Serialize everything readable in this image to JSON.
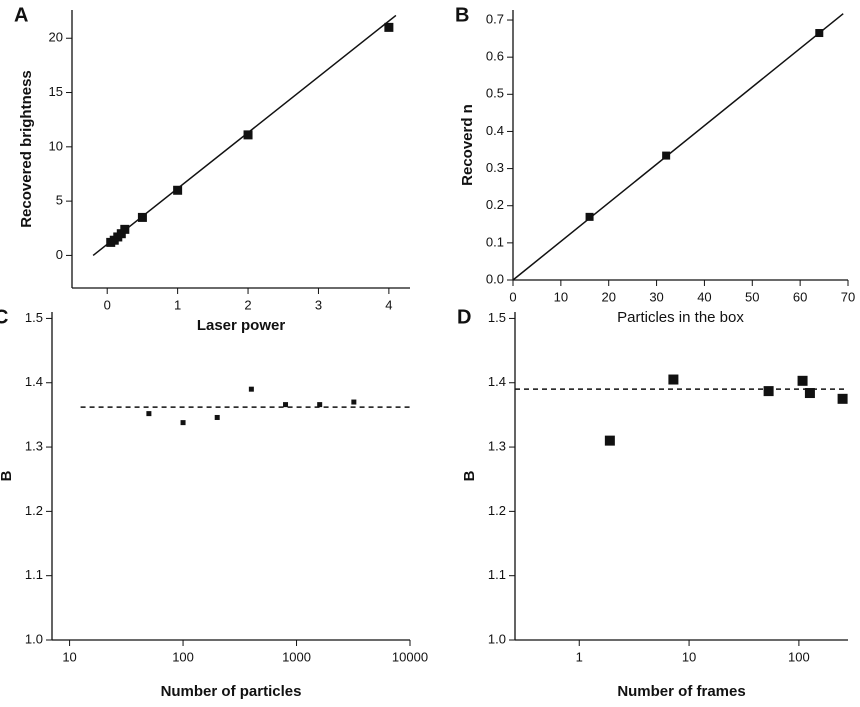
{
  "chart_data": [
    {
      "type": "scatter",
      "label": "A",
      "x_label": "Laser power",
      "y_label": "Recovered brightness",
      "xlim": [
        -0.5,
        4.3
      ],
      "ylim": [
        -3,
        22.6
      ],
      "xticks": [
        0,
        1,
        2,
        3,
        4
      ],
      "yticks": [
        0,
        5,
        10,
        15,
        20
      ],
      "marker_size": 9,
      "series": [
        {
          "style": "markers",
          "color": "#111111",
          "x": [
            0.05,
            0.1,
            0.15,
            0.2,
            0.25,
            0.5,
            1,
            2,
            4
          ],
          "values": [
            1.2,
            1.4,
            1.7,
            2.0,
            2.4,
            3.5,
            6.0,
            11.1,
            21.0
          ]
        },
        {
          "style": "line",
          "color": "#111111",
          "x": [
            -0.2,
            4.1
          ],
          "values": [
            0,
            22.1
          ]
        }
      ]
    },
    {
      "type": "scatter",
      "label": "B",
      "x_label": "Particles in the box",
      "y_label": "Recoverd n",
      "xlim": [
        0,
        70
      ],
      "ylim": [
        0,
        0.727
      ],
      "xticks": [
        0,
        10,
        20,
        30,
        40,
        50,
        60,
        70
      ],
      "yticks": [
        {
          "value": 0,
          "label": "0.0"
        },
        0.1,
        0.2,
        0.3,
        0.4,
        0.5,
        0.6,
        0.7
      ],
      "marker_size": 8,
      "series": [
        {
          "style": "markers",
          "color": "#111111",
          "x": [
            16,
            32,
            64
          ],
          "values": [
            0.17,
            0.335,
            0.665
          ]
        },
        {
          "style": "line",
          "color": "#111111",
          "x": [
            0,
            69
          ],
          "values": [
            0,
            0.717
          ]
        }
      ]
    },
    {
      "type": "scatter",
      "label": "C",
      "x_label": "Number of particles",
      "y_label": "B",
      "xscale": "log",
      "xlim": [
        7,
        10000
      ],
      "ylim": [
        1.0,
        1.51
      ],
      "xticks": [
        10,
        100,
        1000,
        10000
      ],
      "yticks": [
        {
          "value": 1.0,
          "label": "1.0"
        },
        1.1,
        1.2,
        1.3,
        1.4,
        1.5
      ],
      "marker_size": 5,
      "series": [
        {
          "style": "markers",
          "color": "#111111",
          "x": [
            50,
            100,
            200,
            400,
            800,
            1600,
            3200
          ],
          "values": [
            1.352,
            1.338,
            1.346,
            1.39,
            1.366,
            1.366,
            1.37
          ]
        },
        {
          "style": "dashed",
          "color": "#111111",
          "x": [
            12.5,
            10000
          ],
          "values": [
            1.362,
            1.362
          ]
        }
      ]
    },
    {
      "type": "scatter",
      "label": "D",
      "x_label": "Number of frames",
      "y_label": "B",
      "xscale": "log",
      "xlim": [
        0.26,
        280
      ],
      "ylim": [
        1.0,
        1.51
      ],
      "xticks": [
        1,
        10,
        100
      ],
      "yticks": [
        {
          "value": 1.0,
          "label": "1.0"
        },
        1.1,
        1.2,
        1.3,
        1.4,
        1.5
      ],
      "marker_size": 10,
      "series": [
        {
          "style": "markers",
          "color": "#111111",
          "x": [
            1.9,
            7.2,
            53,
            108,
            126,
            250
          ],
          "values": [
            1.31,
            1.405,
            1.387,
            1.403,
            1.384,
            1.375
          ]
        },
        {
          "style": "dashed",
          "color": "#111111",
          "x": [
            0.26,
            280
          ],
          "values": [
            1.39,
            1.39
          ]
        }
      ]
    }
  ]
}
